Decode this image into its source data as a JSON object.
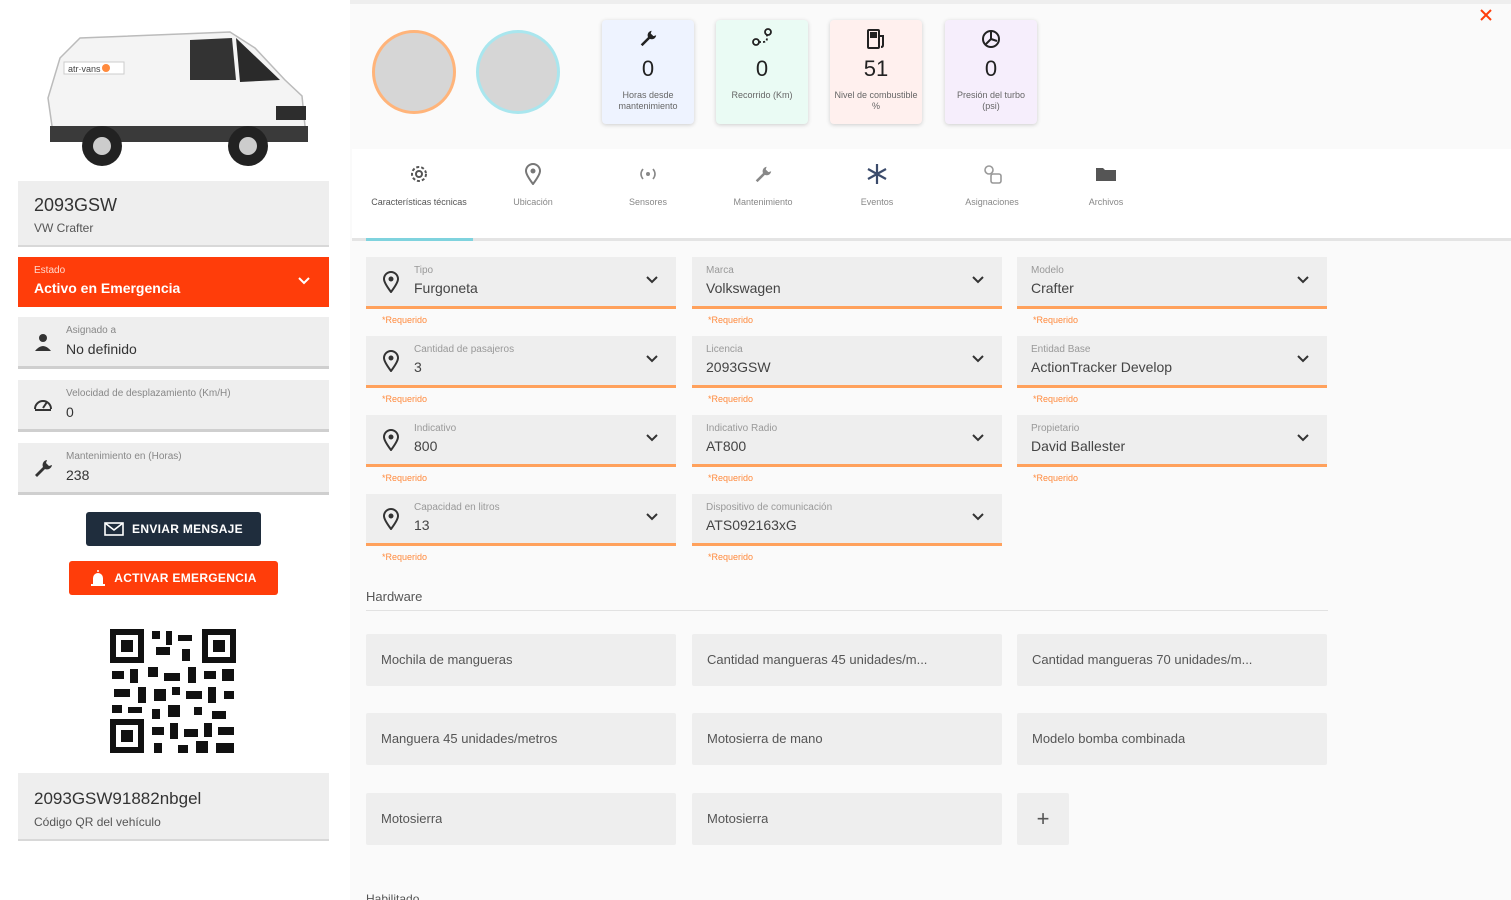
{
  "vehicle": {
    "plate": "2093GSW",
    "model_name": "VW Crafter",
    "state_label": "Estado",
    "state_value": "Activo en Emergencia",
    "assigned_label": "Asignado a",
    "assigned_value": "No definido",
    "speed_label": "Velocidad de desplazamiento (Km/H)",
    "speed_value": "0",
    "maintenance_label": "Mantenimiento en (Horas)",
    "maintenance_value": "238",
    "send_message_label": "ENVIAR MENSAJE",
    "activate_emergency_label": "ACTIVAR EMERGENCIA",
    "qr_code": "2093GSW91882nbgel",
    "qr_caption": "Código QR del vehículo"
  },
  "stats": [
    {
      "value": "0",
      "caption": "Horas desde mantenimiento",
      "icon": "wrench-icon",
      "bg": "#eef3ff"
    },
    {
      "value": "0",
      "caption": "Recorrido (Km)",
      "icon": "route-icon",
      "bg": "#eafbf4"
    },
    {
      "value": "51",
      "caption": "Nivel de combustible %",
      "icon": "fuel-icon",
      "bg": "#fff0ee"
    },
    {
      "value": "0",
      "caption": "Presión del turbo (psi)",
      "icon": "turbo-icon",
      "bg": "#f6eefc"
    }
  ],
  "tabs": [
    {
      "label": "Características técnicas",
      "icon": "gear-icon"
    },
    {
      "label": "Ubicación",
      "icon": "location-pin-icon"
    },
    {
      "label": "Sensores",
      "icon": "sensor-icon"
    },
    {
      "label": "Mantenimiento",
      "icon": "wrench-icon"
    },
    {
      "label": "Eventos",
      "icon": "asterisk-icon"
    },
    {
      "label": "Asignaciones",
      "icon": "assignment-icon"
    },
    {
      "label": "Archivos",
      "icon": "folder-icon"
    }
  ],
  "fields": {
    "tipo": {
      "label": "Tipo",
      "value": "Furgoneta",
      "req": "*Requerido"
    },
    "marca": {
      "label": "Marca",
      "value": "Volkswagen",
      "req": "*Requerido"
    },
    "modelo": {
      "label": "Modelo",
      "value": "Crafter",
      "req": "*Requerido"
    },
    "pasajeros": {
      "label": "Cantidad de pasajeros",
      "value": "3",
      "req": "*Requerido"
    },
    "licencia": {
      "label": "Licencia",
      "value": "2093GSW",
      "req": "*Requerido"
    },
    "entidad": {
      "label": "Entidad Base",
      "value": "ActionTracker Develop",
      "req": "*Requerido"
    },
    "indicativo": {
      "label": "Indicativo",
      "value": "800",
      "req": "*Requerido"
    },
    "radio": {
      "label": "Indicativo Radio",
      "value": "AT800",
      "req": "*Requerido"
    },
    "propietario": {
      "label": "Propietario",
      "value": "David Ballester",
      "req": "*Requerido"
    },
    "capacidad": {
      "label": "Capacidad en litros",
      "value": "13",
      "req": "*Requerido"
    },
    "dispositivo": {
      "label": "Dispositivo de comunicación",
      "value": "ATS092163xG",
      "req": "*Requerido"
    }
  },
  "hardware": {
    "title": "Hardware",
    "items": [
      "Mochila de mangueras",
      "Cantidad mangueras 45 unidades/m...",
      "Cantidad mangueras 70 unidades/m...",
      "Manguera 45 unidades/metros",
      "Motosierra de mano",
      "Modelo bomba combinada",
      "Motosierra",
      "Motosierra"
    ],
    "add_label": "+"
  },
  "habilitado_label": "Habilitado",
  "colors": {
    "accent": "#ff3d0a",
    "dark_button": "#1f2d3d",
    "underline": "#ffa15c",
    "tab_ink": "#7fd3de"
  }
}
